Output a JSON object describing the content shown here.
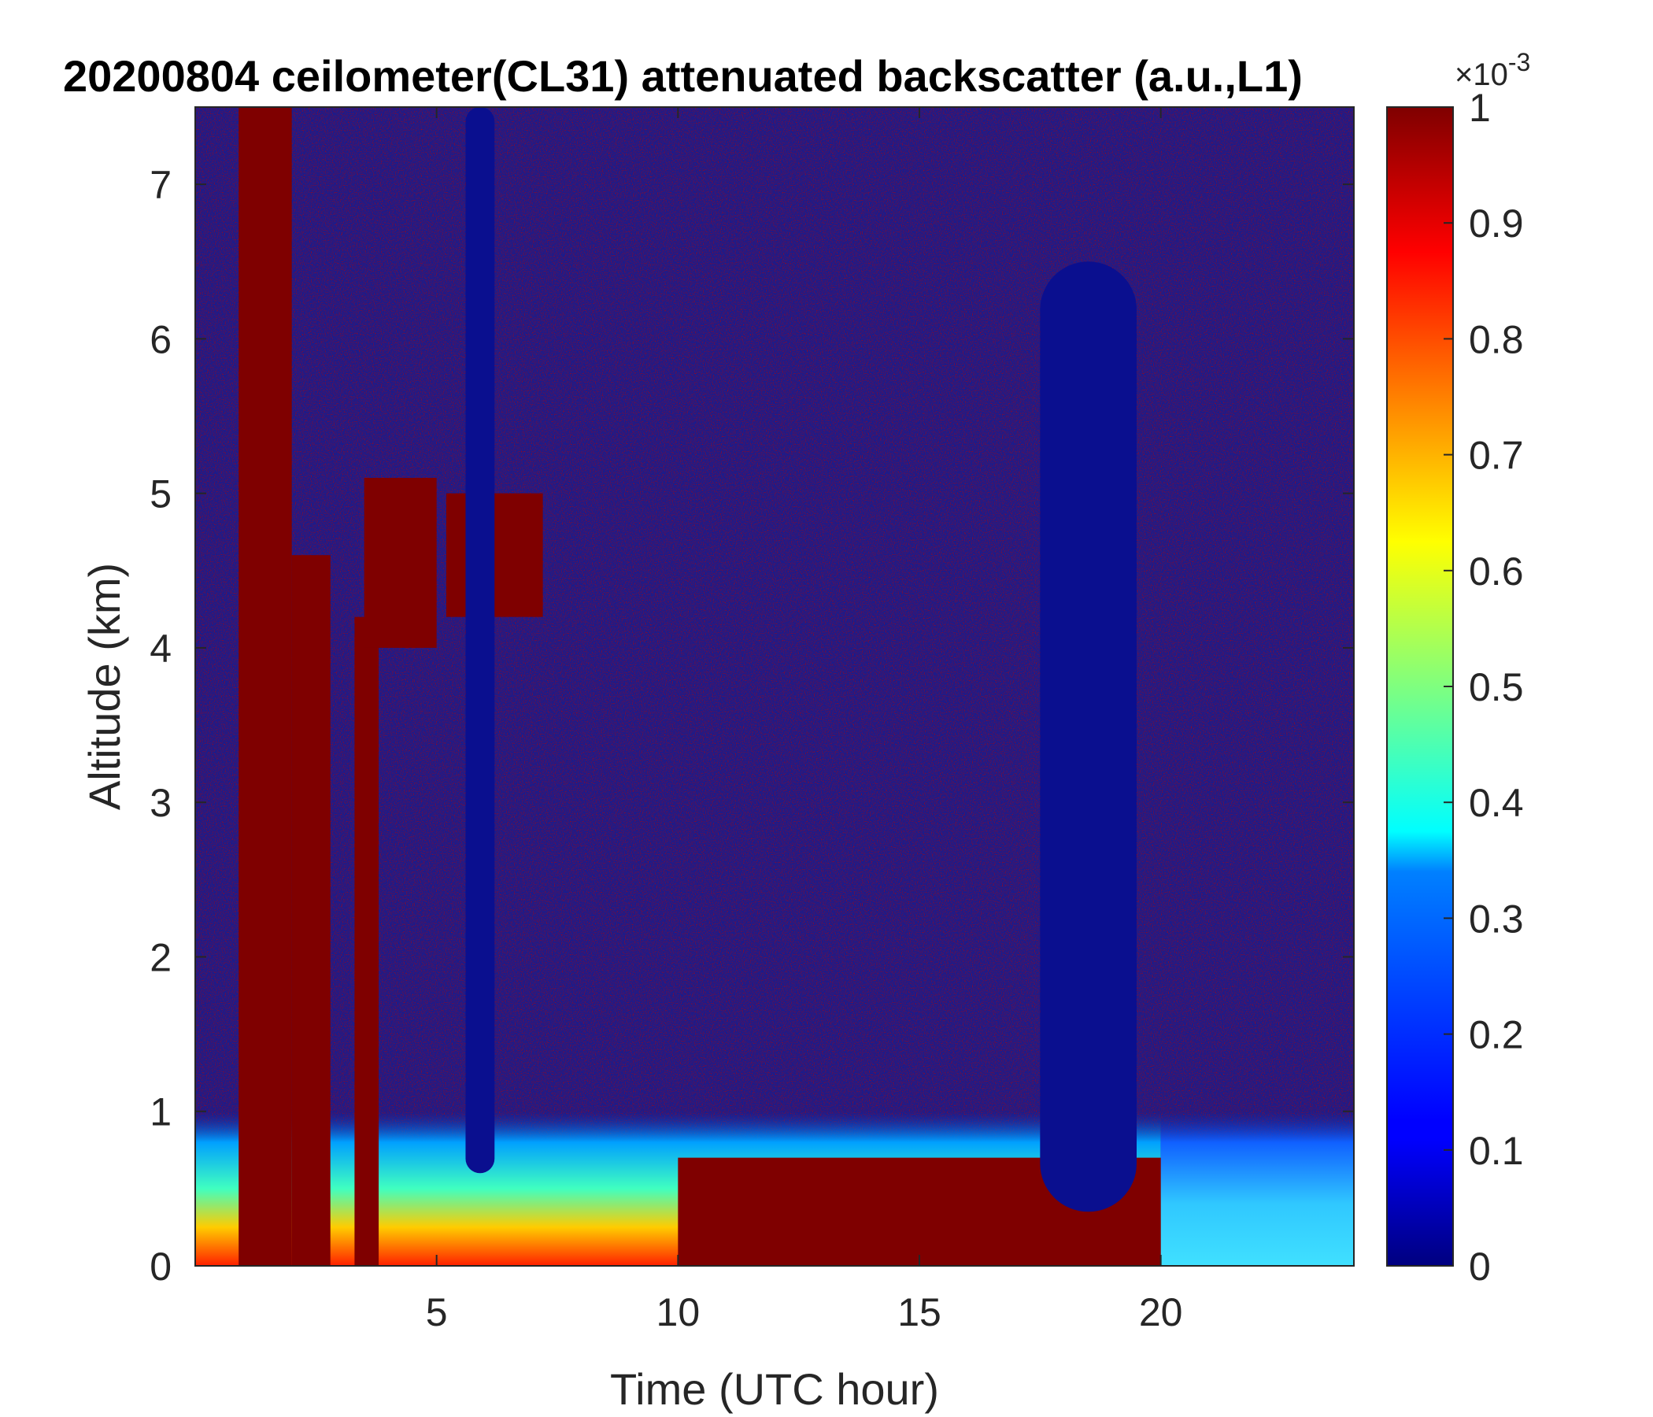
{
  "chart_data": {
    "type": "heatmap",
    "title": "20200804 ceilometer(CL31) attenuated backscatter (a.u.,L1)",
    "xlabel": "Time (UTC hour)",
    "ylabel": "Altitude (km)",
    "xlim": [
      0,
      24
    ],
    "ylim": [
      0,
      7.5
    ],
    "xticks": [
      5,
      10,
      15,
      20
    ],
    "yticks": [
      0,
      1,
      2,
      3,
      4,
      5,
      6,
      7
    ],
    "colormap": "jet",
    "colorbar": {
      "range": [
        0,
        0.001
      ],
      "ticks": [
        "0",
        "0.1",
        "0.2",
        "0.3",
        "0.4",
        "0.5",
        "0.6",
        "0.7",
        "0.8",
        "0.9",
        "1"
      ],
      "multiplier_base": "×10",
      "multiplier_exponent": "-3"
    },
    "features": [
      {
        "kind": "aerosol_layer",
        "time_range": [
          0,
          24
        ],
        "altitude_range": [
          0,
          1.0
        ]
      },
      {
        "kind": "cloud_streak",
        "time_range": [
          0.9,
          2.0
        ],
        "altitude_range": [
          0,
          7.5
        ]
      },
      {
        "kind": "cloud_streak",
        "time_range": [
          2.0,
          2.8
        ],
        "altitude_range": [
          0,
          4.6
        ]
      },
      {
        "kind": "cloud_streak",
        "time_range": [
          3.3,
          3.8
        ],
        "altitude_range": [
          0,
          4.2
        ]
      },
      {
        "kind": "cloud_layer",
        "time_range": [
          3.5,
          5.0
        ],
        "altitude_range": [
          4.0,
          5.1
        ]
      },
      {
        "kind": "cloud_layer",
        "time_range": [
          5.2,
          7.2
        ],
        "altitude_range": [
          4.2,
          5.0
        ]
      },
      {
        "kind": "clear_column",
        "time_range": [
          5.6,
          6.2
        ],
        "altitude_range": [
          0.6,
          7.5
        ]
      },
      {
        "kind": "boundary_layer",
        "time_range": [
          10.0,
          20.0
        ],
        "altitude_range": [
          0,
          0.7
        ]
      },
      {
        "kind": "clear_column",
        "time_range": [
          17.5,
          19.5
        ],
        "altitude_range": [
          0.35,
          6.5
        ]
      }
    ]
  }
}
